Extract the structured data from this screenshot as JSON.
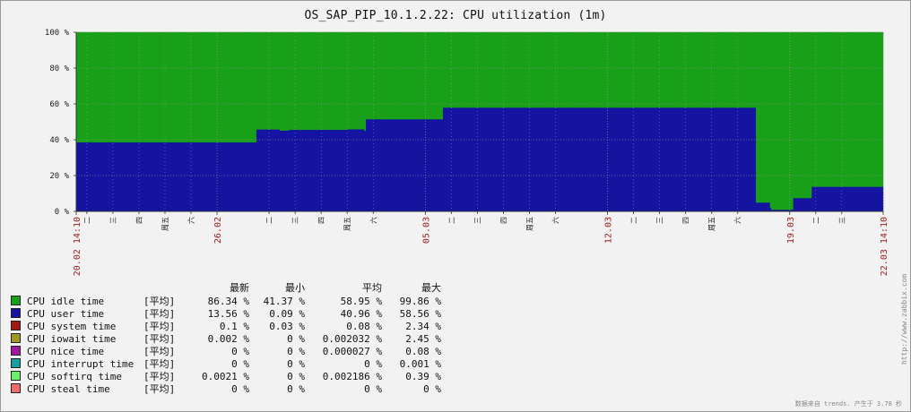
{
  "colors": {
    "background": "#f2f2f2",
    "grid": "#999999",
    "date_label": "#a02020",
    "tick_label": "#222222"
  },
  "chart_data": {
    "type": "area",
    "stacked": true,
    "title": "OS_SAP_PIP_10.1.2.22: CPU utilization (1m)",
    "y_unit": "%",
    "ylim": [
      0,
      100
    ],
    "yticks": [
      "0 %",
      "20 %",
      "40 %",
      "60 %",
      "80 %",
      "100 %"
    ],
    "y_tick_values": [
      0,
      20,
      40,
      60,
      80,
      100
    ],
    "xlim": [
      "2024-02-20 14:10",
      "2024-03-22 14:10"
    ],
    "x_edge_labels": [
      "20.02 14:10",
      "22.03 14:10"
    ],
    "x_date_labels": [
      {
        "t": "2024-02-26 00:00",
        "label": "26.02"
      },
      {
        "t": "2024-03-05 00:00",
        "label": "05.03"
      },
      {
        "t": "2024-03-12 00:00",
        "label": "12.03"
      },
      {
        "t": "2024-03-19 00:00",
        "label": "19.03"
      }
    ],
    "x_day_labels": [
      {
        "t": "2024-02-21 00:00",
        "label": "二"
      },
      {
        "t": "2024-02-22 00:00",
        "label": "三"
      },
      {
        "t": "2024-02-23 00:00",
        "label": "四"
      },
      {
        "t": "2024-02-24 00:00",
        "label": "周五"
      },
      {
        "t": "2024-02-25 00:00",
        "label": "六"
      },
      {
        "t": "2024-02-28 00:00",
        "label": "二"
      },
      {
        "t": "2024-02-29 00:00",
        "label": "三"
      },
      {
        "t": "2024-03-01 00:00",
        "label": "四"
      },
      {
        "t": "2024-03-02 00:00",
        "label": "周五"
      },
      {
        "t": "2024-03-03 00:00",
        "label": "六"
      },
      {
        "t": "2024-03-06 00:00",
        "label": "二"
      },
      {
        "t": "2024-03-07 00:00",
        "label": "三"
      },
      {
        "t": "2024-03-08 00:00",
        "label": "四"
      },
      {
        "t": "2024-03-09 00:00",
        "label": "周五"
      },
      {
        "t": "2024-03-10 00:00",
        "label": "六"
      },
      {
        "t": "2024-03-13 00:00",
        "label": "二"
      },
      {
        "t": "2024-03-14 00:00",
        "label": "三"
      },
      {
        "t": "2024-03-15 00:00",
        "label": "四"
      },
      {
        "t": "2024-03-16 00:00",
        "label": "周五"
      },
      {
        "t": "2024-03-17 00:00",
        "label": "六"
      },
      {
        "t": "2024-03-20 00:00",
        "label": "二"
      },
      {
        "t": "2024-03-21 00:00",
        "label": "三"
      }
    ],
    "x": [
      "2024-02-20 14:10",
      "2024-02-27 11:00",
      "2024-02-27 12:00",
      "2024-02-28 09:00",
      "2024-02-28 10:00",
      "2024-02-28 18:00",
      "2024-03-02 00:00",
      "2024-03-02 16:00",
      "2024-03-02 17:00",
      "2024-03-03 12:00",
      "2024-03-03 13:00",
      "2024-03-05 15:00",
      "2024-03-05 16:00",
      "2024-03-17 02:00",
      "2024-03-17 10:00",
      "2024-03-17 16:00",
      "2024-03-17 17:00",
      "2024-03-18 06:00",
      "2024-03-18 07:00",
      "2024-03-19 02:00",
      "2024-03-19 03:00",
      "2024-03-19 19:00",
      "2024-03-19 20:00",
      "2024-03-22 14:10"
    ],
    "series": [
      {
        "name": "CPU user time",
        "color": "#1414a0",
        "values": [
          38.6,
          38.6,
          45.8,
          45.8,
          45.2,
          45.6,
          45.9,
          45.0,
          51.5,
          51.5,
          51.5,
          51.5,
          58.0,
          58.0,
          58.0,
          58.0,
          5.0,
          2.0,
          1.0,
          1.0,
          7.5,
          7.5,
          13.8,
          13.8
        ]
      },
      {
        "name": "CPU idle time",
        "color": "#18a018",
        "values": [
          61.4,
          61.4,
          54.2,
          54.2,
          54.8,
          54.4,
          54.1,
          55.0,
          48.5,
          48.5,
          48.5,
          48.5,
          42.0,
          42.0,
          42.0,
          42.0,
          95.0,
          98.0,
          99.0,
          99.0,
          92.5,
          92.5,
          86.2,
          86.2
        ]
      }
    ]
  },
  "legend": {
    "headers": {
      "last": "最新",
      "min": "最小",
      "avg": "平均",
      "max": "最大"
    },
    "rows": [
      {
        "name": "CPU idle time",
        "func": "[平均]",
        "last": "86.34 %",
        "min": "41.37 %",
        "avg": "58.95 %",
        "max": "99.86 %",
        "color": "#18a018"
      },
      {
        "name": "CPU user time",
        "func": "[平均]",
        "last": "13.56 %",
        "min": "0.09 %",
        "avg": "40.96 %",
        "max": "58.56 %",
        "color": "#1414a0"
      },
      {
        "name": "CPU system time",
        "func": "[平均]",
        "last": "0.1 %",
        "min": "0.03 %",
        "avg": "0.08 %",
        "max": "2.34 %",
        "color": "#a01818"
      },
      {
        "name": "CPU iowait time",
        "func": "[平均]",
        "last": "0.002 %",
        "min": "0 %",
        "avg": "0.002032 %",
        "max": "2.45 %",
        "color": "#a09818"
      },
      {
        "name": "CPU nice time",
        "func": "[平均]",
        "last": "0 %",
        "min": "0 %",
        "avg": "0.000027 %",
        "max": "0.08 %",
        "color": "#a018a0"
      },
      {
        "name": "CPU interrupt time",
        "func": "[平均]",
        "last": "0 %",
        "min": "0 %",
        "avg": "0 %",
        "max": "0.001 %",
        "color": "#18a0a0"
      },
      {
        "name": "CPU softirq time",
        "func": "[平均]",
        "last": "0.0021 %",
        "min": "0 %",
        "avg": "0.002186 %",
        "max": "0.39 %",
        "color": "#6cf06c"
      },
      {
        "name": "CPU steal time",
        "func": "[平均]",
        "last": "0 %",
        "min": "0 %",
        "avg": "0 %",
        "max": "0 %",
        "color": "#f06c6c"
      }
    ]
  },
  "side_url": "http://www.zabbix.com",
  "footer": "数据来自 trends. 产生于 3.78 秒"
}
